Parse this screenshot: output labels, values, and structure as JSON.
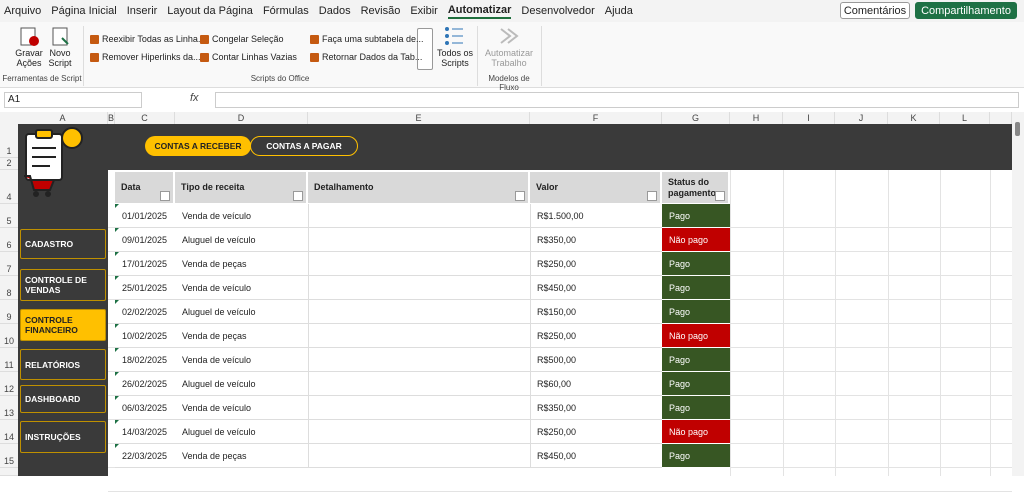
{
  "menu": {
    "tabs": [
      "Arquivo",
      "Página Inicial",
      "Inserir",
      "Layout da Página",
      "Fórmulas",
      "Dados",
      "Revisão",
      "Exibir",
      "Automatizar",
      "Desenvolvedor",
      "Ajuda"
    ],
    "comments": "Comentários",
    "share": "Compartilhamento"
  },
  "ribbon": {
    "script_tools": {
      "items": [
        "Gravar Ações",
        "Novo Script"
      ],
      "label": "Ferramentas de Script"
    },
    "office_scripts": {
      "items": [
        "Reexibir Todas as Linha...",
        "Remover Hiperlinks da...",
        "Congelar Seleção",
        "Contar Linhas Vazias",
        "Faça uma subtabela de...",
        "Retornar Dados da Tab..."
      ],
      "all": "Todos os Scripts",
      "label": "Scripts do Office"
    },
    "flow": {
      "item": "Automatizar Trabalho",
      "label": "Modelos de Fluxo"
    }
  },
  "formula_bar": {
    "name_box": "A1",
    "fx": "fx"
  },
  "grid": {
    "columns": [
      "A",
      "B",
      "C",
      "D",
      "E",
      "F",
      "G",
      "H",
      "I",
      "J",
      "K",
      "L"
    ],
    "rows": [
      "1",
      "2",
      "4",
      "5",
      "6",
      "7",
      "8",
      "9",
      "10",
      "11",
      "12",
      "13",
      "14",
      "15"
    ]
  },
  "sheet": {
    "tabs": [
      "CONTAS A RECEBER",
      "CONTAS A PAGAR"
    ],
    "nav": [
      "CADASTRO",
      "CONTROLE DE VENDAS",
      "CONTROLE FINANCEIRO",
      "RELATÓRIOS",
      "DASHBOARD",
      "INSTRUÇÕES"
    ],
    "table": {
      "headers": [
        "Data",
        "Tipo de receita",
        "Detalhamento",
        "Valor",
        "Status do pagamento"
      ],
      "rows": [
        {
          "date": "01/01/2025",
          "type": "Venda de veículo",
          "value": "R$1.500,00",
          "status": "Pago",
          "status_color": "#375623"
        },
        {
          "date": "09/01/2025",
          "type": "Aluguel de veículo",
          "value": "R$350,00",
          "status": "Não pago",
          "status_color": "#c00000"
        },
        {
          "date": "17/01/2025",
          "type": "Venda de peças",
          "value": "R$250,00",
          "status": "Pago",
          "status_color": "#375623"
        },
        {
          "date": "25/01/2025",
          "type": "Venda de veículo",
          "value": "R$450,00",
          "status": "Pago",
          "status_color": "#375623"
        },
        {
          "date": "02/02/2025",
          "type": "Aluguel de veículo",
          "value": "R$150,00",
          "status": "Pago",
          "status_color": "#375623"
        },
        {
          "date": "10/02/2025",
          "type": "Venda de peças",
          "value": "R$250,00",
          "status": "Não pago",
          "status_color": "#c00000"
        },
        {
          "date": "18/02/2025",
          "type": "Venda de veículo",
          "value": "R$500,00",
          "status": "Pago",
          "status_color": "#375623"
        },
        {
          "date": "26/02/2025",
          "type": "Aluguel de veículo",
          "value": "R$60,00",
          "status": "Pago",
          "status_color": "#375623"
        },
        {
          "date": "06/03/2025",
          "type": "Venda de veículo",
          "value": "R$350,00",
          "status": "Pago",
          "status_color": "#375623"
        },
        {
          "date": "14/03/2025",
          "type": "Aluguel de veículo",
          "value": "R$250,00",
          "status": "Não pago",
          "status_color": "#c00000"
        },
        {
          "date": "22/03/2025",
          "type": "Venda de peças",
          "value": "R$450,00",
          "status": "Pago",
          "status_color": "#375623"
        }
      ]
    }
  }
}
